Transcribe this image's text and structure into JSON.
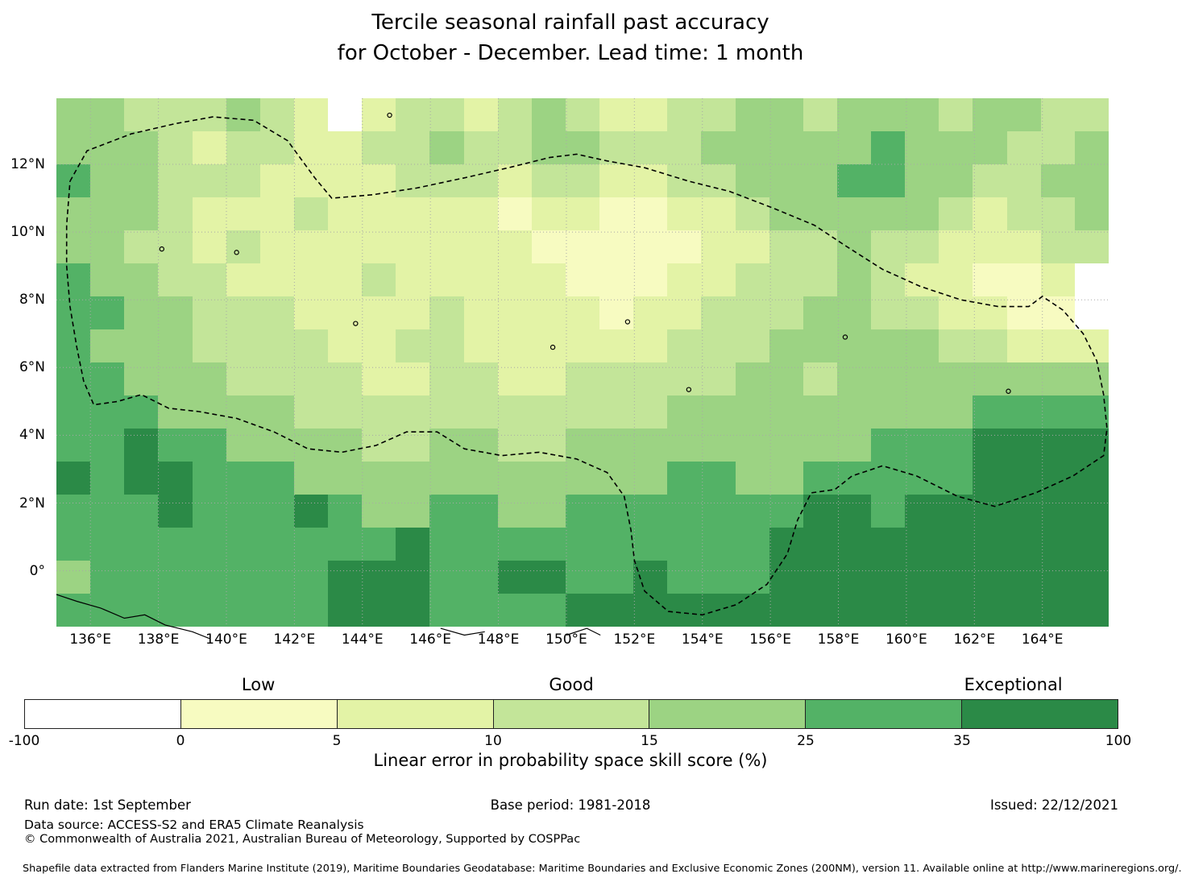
{
  "title": {
    "line1": "Tercile seasonal rainfall past accuracy",
    "line2": "for October - December. Lead time: 1 month"
  },
  "chart_data": {
    "type": "heatmap",
    "title": "Tercile seasonal rainfall past accuracy for October - December. Lead time: 1 month",
    "units": "Linear error in probability space skill score (%)",
    "lon_range": [
      135,
      165.95
    ],
    "lat_range": [
      -1.65,
      13.95
    ],
    "grid_resolution_deg": 1,
    "bins": [
      -100,
      0,
      5,
      10,
      15,
      25,
      35,
      100
    ],
    "classes": [
      {
        "range": "-100 to 0",
        "color": "#ffffff"
      },
      {
        "range": "0 to 5",
        "color": "#f7fbc1"
      },
      {
        "range": "5 to 10",
        "color": "#e3f3a6"
      },
      {
        "range": "10 to 15",
        "color": "#c3e599"
      },
      {
        "range": "15 to 25",
        "color": "#9cd383"
      },
      {
        "range": "25 to 35",
        "color": "#53b266"
      },
      {
        "range": "35 to 100",
        "color": "#2b8a47"
      }
    ],
    "grid_note": "Rows top(14N) to bottom(-2), 31 columns 135E-166E; digit = class index",
    "grid": [
      "4433343202332343223344344434433",
      "4443233223343344333444445444334",
      "5443332222333233223344455443344",
      "4443222322222122112234444432334",
      "4433232222222211111223343322233",
      "5443322223222221112233343221120",
      "5544333222232222122333443322110",
      "5444333322332222223334444433222",
      "5544433332233223333344344444444",
      "5554444333333333334444444445555",
      "5565544443344334444444445556666",
      "6566555444444444445544555556666",
      "5556555654455445555555665666666",
      "5555555555655555555556666666666",
      "4555555566655665565556666666666",
      "5555555566655556666666666666666"
    ],
    "x_ticks": [
      {
        "label": "136°E",
        "lon": 136
      },
      {
        "label": "138°E",
        "lon": 138
      },
      {
        "label": "140°E",
        "lon": 140
      },
      {
        "label": "142°E",
        "lon": 142
      },
      {
        "label": "144°E",
        "lon": 144
      },
      {
        "label": "146°E",
        "lon": 146
      },
      {
        "label": "148°E",
        "lon": 148
      },
      {
        "label": "150°E",
        "lon": 150
      },
      {
        "label": "152°E",
        "lon": 152
      },
      {
        "label": "154°E",
        "lon": 154
      },
      {
        "label": "156°E",
        "lon": 156
      },
      {
        "label": "158°E",
        "lon": 158
      },
      {
        "label": "160°E",
        "lon": 160
      },
      {
        "label": "162°E",
        "lon": 162
      },
      {
        "label": "164°E",
        "lon": 164
      }
    ],
    "y_ticks": [
      {
        "label": "12°N",
        "lat": 12
      },
      {
        "label": "10°N",
        "lat": 10
      },
      {
        "label": "8°N",
        "lat": 8
      },
      {
        "label": "6°N",
        "lat": 6
      },
      {
        "label": "4°N",
        "lat": 4
      },
      {
        "label": "2°N",
        "lat": 2
      },
      {
        "label": "0°",
        "lat": 0
      }
    ],
    "boundary": [
      [
        135.4,
        11.5
      ],
      [
        135.9,
        12.4
      ],
      [
        137.2,
        12.9
      ],
      [
        138.5,
        13.2
      ],
      [
        139.6,
        13.4
      ],
      [
        140.8,
        13.3
      ],
      [
        141.8,
        12.7
      ],
      [
        142.6,
        11.6
      ],
      [
        143.1,
        11.0
      ],
      [
        144.3,
        11.1
      ],
      [
        145.6,
        11.3
      ],
      [
        147.0,
        11.6
      ],
      [
        148.3,
        11.9
      ],
      [
        149.5,
        12.2
      ],
      [
        150.3,
        12.3
      ],
      [
        151.2,
        12.1
      ],
      [
        152.3,
        11.9
      ],
      [
        153.6,
        11.5
      ],
      [
        154.8,
        11.2
      ],
      [
        156.1,
        10.7
      ],
      [
        157.3,
        10.2
      ],
      [
        158.2,
        9.6
      ],
      [
        159.3,
        8.9
      ],
      [
        160.4,
        8.4
      ],
      [
        161.6,
        8.0
      ],
      [
        162.7,
        7.8
      ],
      [
        163.6,
        7.8
      ],
      [
        164.0,
        8.1
      ],
      [
        164.6,
        7.7
      ],
      [
        165.2,
        7.0
      ],
      [
        165.6,
        6.2
      ],
      [
        165.8,
        5.2
      ],
      [
        165.9,
        4.2
      ],
      [
        165.8,
        3.4
      ],
      [
        164.9,
        2.8
      ],
      [
        163.8,
        2.3
      ],
      [
        162.6,
        1.9
      ],
      [
        161.5,
        2.2
      ],
      [
        160.3,
        2.8
      ],
      [
        159.3,
        3.1
      ],
      [
        158.4,
        2.8
      ],
      [
        157.9,
        2.4
      ],
      [
        157.2,
        2.3
      ],
      [
        156.8,
        1.5
      ],
      [
        156.5,
        0.5
      ],
      [
        155.9,
        -0.4
      ],
      [
        155.0,
        -1.0
      ],
      [
        154.0,
        -1.3
      ],
      [
        153.0,
        -1.2
      ],
      [
        152.3,
        -0.6
      ],
      [
        152.0,
        0.3
      ],
      [
        151.9,
        1.2
      ],
      [
        151.7,
        2.2
      ],
      [
        151.2,
        2.9
      ],
      [
        150.3,
        3.3
      ],
      [
        149.2,
        3.5
      ],
      [
        148.1,
        3.4
      ],
      [
        147.0,
        3.6
      ],
      [
        146.2,
        4.1
      ],
      [
        145.3,
        4.1
      ],
      [
        144.4,
        3.7
      ],
      [
        143.4,
        3.5
      ],
      [
        142.4,
        3.6
      ],
      [
        141.4,
        4.1
      ],
      [
        140.3,
        4.5
      ],
      [
        139.2,
        4.7
      ],
      [
        138.3,
        4.8
      ],
      [
        137.5,
        5.2
      ],
      [
        136.8,
        5.0
      ],
      [
        136.1,
        4.9
      ],
      [
        135.8,
        5.6
      ],
      [
        135.6,
        6.6
      ],
      [
        135.4,
        7.8
      ],
      [
        135.3,
        9.0
      ],
      [
        135.3,
        10.2
      ],
      [
        135.4,
        11.5
      ]
    ],
    "islands": [
      [
        144.8,
        13.45
      ],
      [
        138.1,
        9.5
      ],
      [
        140.3,
        9.4
      ],
      [
        143.8,
        7.3
      ],
      [
        149.6,
        6.6
      ],
      [
        151.8,
        7.35
      ],
      [
        153.6,
        5.35
      ],
      [
        158.2,
        6.9
      ],
      [
        163.0,
        5.3
      ]
    ],
    "coastlines": [
      [
        [
          135.0,
          -0.7
        ],
        [
          135.6,
          -0.9
        ],
        [
          136.3,
          -1.1
        ],
        [
          137.0,
          -1.4
        ],
        [
          137.6,
          -1.3
        ],
        [
          138.2,
          -1.6
        ],
        [
          139.0,
          -1.8
        ],
        [
          139.5,
          -2.0
        ]
      ],
      [
        [
          146.3,
          -1.7
        ],
        [
          147.0,
          -1.9
        ],
        [
          147.6,
          -1.8
        ]
      ],
      [
        [
          150.0,
          -1.9
        ],
        [
          150.6,
          -1.7
        ],
        [
          151.0,
          -1.9
        ]
      ]
    ],
    "legend": {
      "categories": [
        {
          "label": "Low",
          "pos": 0.214
        },
        {
          "label": "Good",
          "pos": 0.5
        },
        {
          "label": "Exceptional",
          "pos": 0.904
        }
      ],
      "ticks": [
        "-100",
        "0",
        "5",
        "10",
        "15",
        "25",
        "35",
        "100"
      ],
      "caption": "Linear error in probability space skill score (%)"
    }
  },
  "footer": {
    "run_date": "Run date: 1st September",
    "base_period": "Base period: 1981-2018",
    "issued": "Issued: 22/12/2021",
    "data_source": "Data source: ACCESS-S2 and ERA5 Climate Reanalysis",
    "copyright": "© Commonwealth of Australia 2021, Australian Bureau of Meteorology, Supported by COSPPac",
    "shapefile_note": "Shapefile data extracted from Flanders Marine Institute (2019), Maritime Boundaries Geodatabase: Maritime Boundaries and Exclusive Economic Zones (200NM), version 11. Available online at http://www.marineregions.org/."
  }
}
